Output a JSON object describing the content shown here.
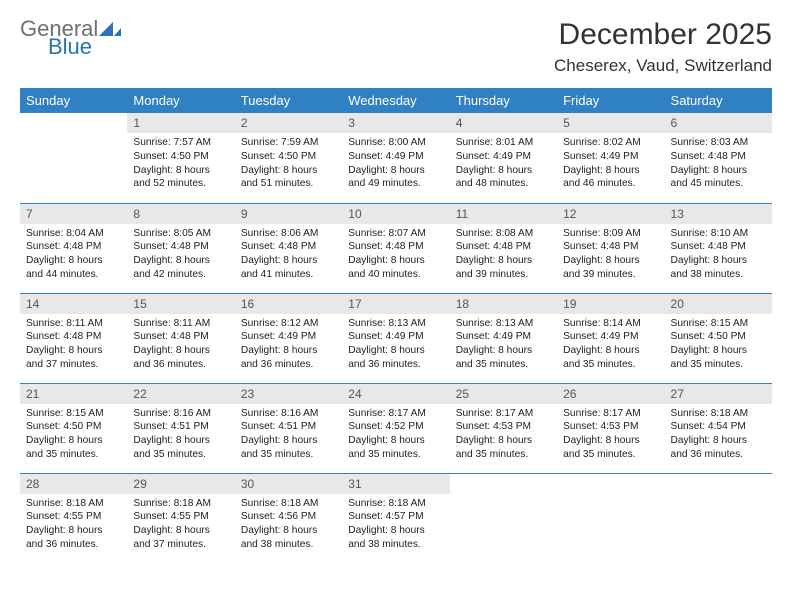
{
  "brand": {
    "general": "General",
    "blue": "Blue"
  },
  "title": "December 2025",
  "location": "Cheserex, Vaud, Switzerland",
  "colors": {
    "header_bg": "#3081c4",
    "header_text": "#ffffff",
    "daynum_bg": "#e8e8e8",
    "rule": "#3081c4",
    "logo_gray": "#6f6f6f",
    "logo_blue": "#2a72b5"
  },
  "weekdays": [
    "Sunday",
    "Monday",
    "Tuesday",
    "Wednesday",
    "Thursday",
    "Friday",
    "Saturday"
  ],
  "weeks": [
    [
      null,
      {
        "n": 1,
        "sr": "7:57 AM",
        "ss": "4:50 PM",
        "dl": "8 hours and 52 minutes."
      },
      {
        "n": 2,
        "sr": "7:59 AM",
        "ss": "4:50 PM",
        "dl": "8 hours and 51 minutes."
      },
      {
        "n": 3,
        "sr": "8:00 AM",
        "ss": "4:49 PM",
        "dl": "8 hours and 49 minutes."
      },
      {
        "n": 4,
        "sr": "8:01 AM",
        "ss": "4:49 PM",
        "dl": "8 hours and 48 minutes."
      },
      {
        "n": 5,
        "sr": "8:02 AM",
        "ss": "4:49 PM",
        "dl": "8 hours and 46 minutes."
      },
      {
        "n": 6,
        "sr": "8:03 AM",
        "ss": "4:48 PM",
        "dl": "8 hours and 45 minutes."
      }
    ],
    [
      {
        "n": 7,
        "sr": "8:04 AM",
        "ss": "4:48 PM",
        "dl": "8 hours and 44 minutes."
      },
      {
        "n": 8,
        "sr": "8:05 AM",
        "ss": "4:48 PM",
        "dl": "8 hours and 42 minutes."
      },
      {
        "n": 9,
        "sr": "8:06 AM",
        "ss": "4:48 PM",
        "dl": "8 hours and 41 minutes."
      },
      {
        "n": 10,
        "sr": "8:07 AM",
        "ss": "4:48 PM",
        "dl": "8 hours and 40 minutes."
      },
      {
        "n": 11,
        "sr": "8:08 AM",
        "ss": "4:48 PM",
        "dl": "8 hours and 39 minutes."
      },
      {
        "n": 12,
        "sr": "8:09 AM",
        "ss": "4:48 PM",
        "dl": "8 hours and 39 minutes."
      },
      {
        "n": 13,
        "sr": "8:10 AM",
        "ss": "4:48 PM",
        "dl": "8 hours and 38 minutes."
      }
    ],
    [
      {
        "n": 14,
        "sr": "8:11 AM",
        "ss": "4:48 PM",
        "dl": "8 hours and 37 minutes."
      },
      {
        "n": 15,
        "sr": "8:11 AM",
        "ss": "4:48 PM",
        "dl": "8 hours and 36 minutes."
      },
      {
        "n": 16,
        "sr": "8:12 AM",
        "ss": "4:49 PM",
        "dl": "8 hours and 36 minutes."
      },
      {
        "n": 17,
        "sr": "8:13 AM",
        "ss": "4:49 PM",
        "dl": "8 hours and 36 minutes."
      },
      {
        "n": 18,
        "sr": "8:13 AM",
        "ss": "4:49 PM",
        "dl": "8 hours and 35 minutes."
      },
      {
        "n": 19,
        "sr": "8:14 AM",
        "ss": "4:49 PM",
        "dl": "8 hours and 35 minutes."
      },
      {
        "n": 20,
        "sr": "8:15 AM",
        "ss": "4:50 PM",
        "dl": "8 hours and 35 minutes."
      }
    ],
    [
      {
        "n": 21,
        "sr": "8:15 AM",
        "ss": "4:50 PM",
        "dl": "8 hours and 35 minutes."
      },
      {
        "n": 22,
        "sr": "8:16 AM",
        "ss": "4:51 PM",
        "dl": "8 hours and 35 minutes."
      },
      {
        "n": 23,
        "sr": "8:16 AM",
        "ss": "4:51 PM",
        "dl": "8 hours and 35 minutes."
      },
      {
        "n": 24,
        "sr": "8:17 AM",
        "ss": "4:52 PM",
        "dl": "8 hours and 35 minutes."
      },
      {
        "n": 25,
        "sr": "8:17 AM",
        "ss": "4:53 PM",
        "dl": "8 hours and 35 minutes."
      },
      {
        "n": 26,
        "sr": "8:17 AM",
        "ss": "4:53 PM",
        "dl": "8 hours and 35 minutes."
      },
      {
        "n": 27,
        "sr": "8:18 AM",
        "ss": "4:54 PM",
        "dl": "8 hours and 36 minutes."
      }
    ],
    [
      {
        "n": 28,
        "sr": "8:18 AM",
        "ss": "4:55 PM",
        "dl": "8 hours and 36 minutes."
      },
      {
        "n": 29,
        "sr": "8:18 AM",
        "ss": "4:55 PM",
        "dl": "8 hours and 37 minutes."
      },
      {
        "n": 30,
        "sr": "8:18 AM",
        "ss": "4:56 PM",
        "dl": "8 hours and 38 minutes."
      },
      {
        "n": 31,
        "sr": "8:18 AM",
        "ss": "4:57 PM",
        "dl": "8 hours and 38 minutes."
      },
      null,
      null,
      null
    ]
  ],
  "labels": {
    "sunrise": "Sunrise:",
    "sunset": "Sunset:",
    "daylight": "Daylight:"
  }
}
